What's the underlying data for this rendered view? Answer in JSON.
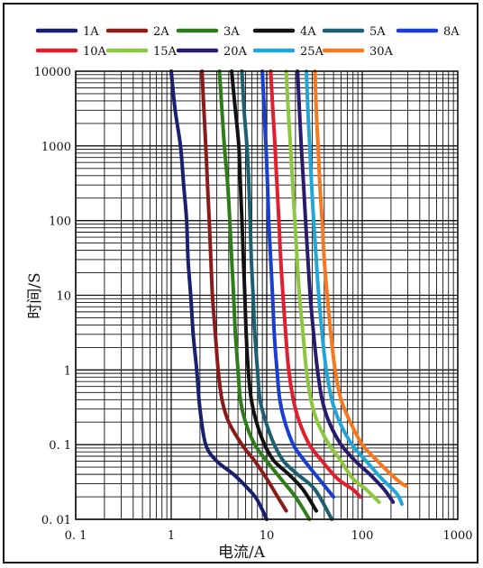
{
  "chart_data": {
    "type": "line",
    "xscale": "log",
    "yscale": "log",
    "xlim": [
      0.1,
      1000
    ],
    "ylim": [
      0.01,
      10000
    ],
    "grid": true,
    "legend_position": "top",
    "xlabel": "电流/A",
    "ylabel": "时间/S",
    "x_tick_labels": [
      "0. 1",
      "1",
      "10",
      "100",
      "1000"
    ],
    "y_tick_labels": [
      "0. 01",
      "0. 1",
      "1",
      "10",
      "100",
      "1000",
      "10000"
    ],
    "series": [
      {
        "name": "1A",
        "color": "#1a1f6e",
        "points": [
          [
            1.0,
            10000
          ],
          [
            1.1,
            3000
          ],
          [
            1.25,
            1000
          ],
          [
            1.35,
            300
          ],
          [
            1.45,
            100
          ],
          [
            1.5,
            30
          ],
          [
            1.6,
            10
          ],
          [
            1.7,
            3
          ],
          [
            1.85,
            1
          ],
          [
            2.0,
            0.3
          ],
          [
            2.3,
            0.1
          ],
          [
            3.0,
            0.06
          ],
          [
            4.5,
            0.04
          ],
          [
            6.5,
            0.025
          ],
          [
            8.0,
            0.018
          ],
          [
            10.0,
            0.01
          ]
        ]
      },
      {
        "name": "2A",
        "color": "#8b1a1a",
        "points": [
          [
            2.1,
            10000
          ],
          [
            2.2,
            3000
          ],
          [
            2.3,
            1000
          ],
          [
            2.4,
            300
          ],
          [
            2.5,
            100
          ],
          [
            2.6,
            30
          ],
          [
            2.7,
            10
          ],
          [
            2.9,
            3
          ],
          [
            3.1,
            1
          ],
          [
            3.4,
            0.4
          ],
          [
            4.0,
            0.2
          ],
          [
            5.5,
            0.1
          ],
          [
            7.5,
            0.06
          ],
          [
            10,
            0.035
          ],
          [
            13,
            0.02
          ],
          [
            16,
            0.013
          ]
        ]
      },
      {
        "name": "3A",
        "color": "#2e7d1a",
        "points": [
          [
            3.2,
            10000
          ],
          [
            3.4,
            3000
          ],
          [
            3.6,
            1000
          ],
          [
            3.9,
            300
          ],
          [
            4.1,
            100
          ],
          [
            4.3,
            30
          ],
          [
            4.5,
            10
          ],
          [
            4.7,
            3
          ],
          [
            5.0,
            1
          ],
          [
            5.3,
            0.4
          ],
          [
            6.0,
            0.2
          ],
          [
            7.5,
            0.1
          ],
          [
            10,
            0.06
          ],
          [
            14,
            0.035
          ],
          [
            20,
            0.02
          ],
          [
            28,
            0.01
          ]
        ]
      },
      {
        "name": "4A",
        "color": "#111111",
        "points": [
          [
            4.3,
            10000
          ],
          [
            4.7,
            3000
          ],
          [
            5.1,
            1000
          ],
          [
            5.3,
            300
          ],
          [
            5.5,
            100
          ],
          [
            5.7,
            30
          ],
          [
            5.9,
            10
          ],
          [
            6.1,
            3
          ],
          [
            6.4,
            1
          ],
          [
            6.9,
            0.4
          ],
          [
            7.8,
            0.2
          ],
          [
            9.5,
            0.1
          ],
          [
            12,
            0.06
          ],
          [
            17,
            0.04
          ],
          [
            24,
            0.025
          ],
          [
            33,
            0.013
          ]
        ]
      },
      {
        "name": "5A",
        "color": "#1c5f70",
        "points": [
          [
            5.5,
            10000
          ],
          [
            5.8,
            3000
          ],
          [
            6.2,
            1000
          ],
          [
            6.5,
            300
          ],
          [
            6.7,
            100
          ],
          [
            6.9,
            30
          ],
          [
            7.2,
            10
          ],
          [
            7.5,
            3
          ],
          [
            8.0,
            1
          ],
          [
            8.5,
            0.4
          ],
          [
            9.8,
            0.2
          ],
          [
            12,
            0.1
          ],
          [
            15,
            0.06
          ],
          [
            21,
            0.04
          ],
          [
            32,
            0.025
          ],
          [
            48,
            0.01
          ]
        ]
      },
      {
        "name": "8A",
        "color": "#1a3ed0",
        "points": [
          [
            9.0,
            10000
          ],
          [
            9.4,
            3000
          ],
          [
            9.8,
            1000
          ],
          [
            10.2,
            300
          ],
          [
            10.5,
            100
          ],
          [
            11,
            30
          ],
          [
            11.5,
            10
          ],
          [
            12,
            3
          ],
          [
            12.8,
            1
          ],
          [
            13.7,
            0.4
          ],
          [
            15.5,
            0.2
          ],
          [
            19,
            0.1
          ],
          [
            25,
            0.06
          ],
          [
            35,
            0.035
          ],
          [
            50,
            0.02
          ]
        ]
      },
      {
        "name": "10A",
        "color": "#e01e2e",
        "points": [
          [
            11,
            10000
          ],
          [
            11.6,
            3000
          ],
          [
            12.2,
            1000
          ],
          [
            12.8,
            300
          ],
          [
            13.4,
            100
          ],
          [
            14,
            30
          ],
          [
            14.8,
            10
          ],
          [
            15.8,
            3
          ],
          [
            17,
            1
          ],
          [
            19,
            0.4
          ],
          [
            22,
            0.2
          ],
          [
            28,
            0.1
          ],
          [
            38,
            0.06
          ],
          [
            55,
            0.035
          ],
          [
            80,
            0.025
          ],
          [
            95,
            0.02
          ]
        ]
      },
      {
        "name": "15A",
        "color": "#8dc63f",
        "points": [
          [
            16,
            10000
          ],
          [
            16.8,
            3000
          ],
          [
            17.7,
            1000
          ],
          [
            18.7,
            300
          ],
          [
            19.7,
            100
          ],
          [
            20.8,
            30
          ],
          [
            22,
            10
          ],
          [
            24,
            3
          ],
          [
            26,
            1
          ],
          [
            29,
            0.4
          ],
          [
            34,
            0.2
          ],
          [
            45,
            0.1
          ],
          [
            60,
            0.06
          ],
          [
            80,
            0.035
          ],
          [
            110,
            0.025
          ],
          [
            150,
            0.017
          ]
        ]
      },
      {
        "name": "20A",
        "color": "#2a1a6e",
        "points": [
          [
            21,
            10000
          ],
          [
            22,
            3000
          ],
          [
            23,
            1000
          ],
          [
            24.3,
            300
          ],
          [
            25.5,
            100
          ],
          [
            27,
            30
          ],
          [
            28.5,
            10
          ],
          [
            31,
            3
          ],
          [
            34,
            1
          ],
          [
            38,
            0.4
          ],
          [
            45,
            0.2
          ],
          [
            60,
            0.1
          ],
          [
            85,
            0.06
          ],
          [
            120,
            0.04
          ],
          [
            170,
            0.025
          ],
          [
            210,
            0.017
          ]
        ]
      },
      {
        "name": "25A",
        "color": "#22a6d8",
        "points": [
          [
            26,
            10000
          ],
          [
            27,
            3000
          ],
          [
            28.2,
            1000
          ],
          [
            29.5,
            300
          ],
          [
            31,
            100
          ],
          [
            33,
            30
          ],
          [
            35,
            10
          ],
          [
            38,
            3
          ],
          [
            42,
            1
          ],
          [
            48,
            0.4
          ],
          [
            58,
            0.2
          ],
          [
            78,
            0.1
          ],
          [
            110,
            0.06
          ],
          [
            160,
            0.035
          ],
          [
            230,
            0.022
          ],
          [
            260,
            0.016
          ]
        ]
      },
      {
        "name": "30A",
        "color": "#f47920",
        "points": [
          [
            32,
            10000
          ],
          [
            33,
            3000
          ],
          [
            34.5,
            1000
          ],
          [
            36,
            300
          ],
          [
            38,
            100
          ],
          [
            40,
            30
          ],
          [
            43,
            10
          ],
          [
            47,
            3
          ],
          [
            52,
            1
          ],
          [
            60,
            0.4
          ],
          [
            75,
            0.2
          ],
          [
            100,
            0.1
          ],
          [
            145,
            0.06
          ],
          [
            200,
            0.04
          ],
          [
            260,
            0.03
          ],
          [
            290,
            0.028
          ]
        ]
      }
    ]
  }
}
